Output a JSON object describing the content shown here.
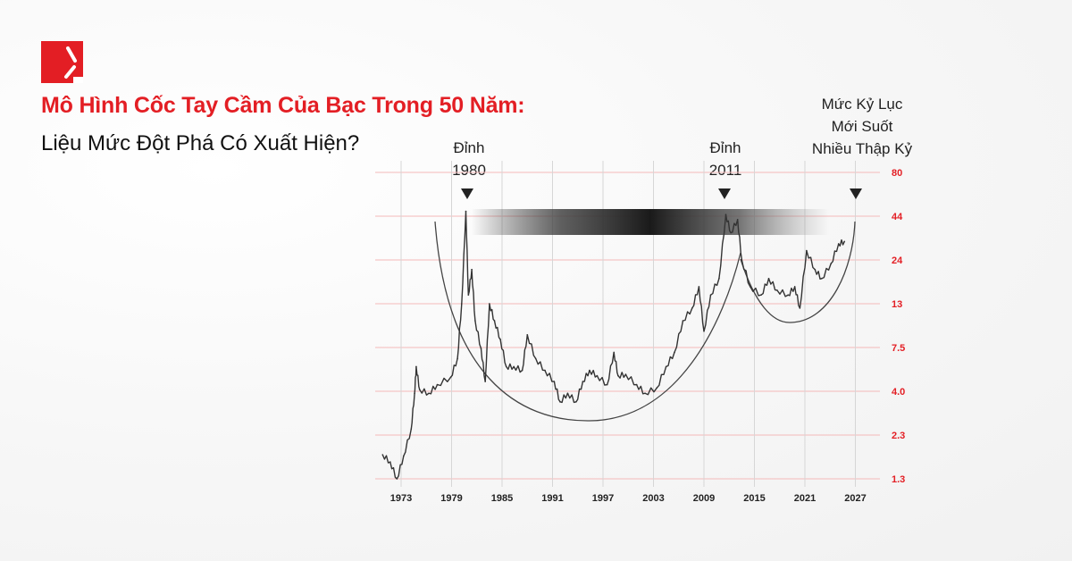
{
  "header": {
    "title": "Mô Hình Cốc Tay Cầm Của Bạc Trong 50 Năm:",
    "subtitle": "Liệu Mức Đột Phá Có Xuất Hiện?",
    "logo_icon": "red-square-logo-icon",
    "accent_color": "#e31e24"
  },
  "annotations": {
    "peak_1980": [
      "Đỉnh",
      "1980"
    ],
    "peak_2011": [
      "Đỉnh",
      "2011"
    ],
    "new_record": [
      "Mức Kỷ Lục",
      "Mới Suốt",
      "Nhiều Thập Kỷ"
    ]
  },
  "chart_data": {
    "type": "line",
    "title": "",
    "xlabel": "",
    "ylabel": "",
    "y_scale": "log",
    "y_ticks": [
      "1.3",
      "2.3",
      "4.0",
      "7.5",
      "13",
      "24",
      "44",
      "80"
    ],
    "x_ticks": [
      "1973",
      "1979",
      "1985",
      "1991",
      "1997",
      "2003",
      "2009",
      "2015",
      "2021",
      "2027"
    ],
    "xlim": [
      1970.5,
      2028
    ],
    "ylim": [
      1.3,
      80
    ],
    "grid": true,
    "line_color": "#333333",
    "grid_color_horizontal": "#f4b9b9",
    "series": [
      {
        "x": [
          1970.8,
          1971.7,
          1972.5,
          1973.3,
          1974.2,
          1974.6,
          1974.8,
          1975.2,
          1976.3,
          1977.3,
          1978.9,
          1979.7,
          1980.2,
          1980.7,
          1981.0,
          1981.4,
          1981.8,
          1982.5,
          1983.0,
          1983.5,
          1984.1,
          1984.8,
          1985.5,
          1986.4,
          1987.4,
          1988.0,
          1989.0,
          1990.1,
          1991.2,
          1991.9,
          1992.8,
          1993.8,
          1994.6,
          1995.4,
          1996.3,
          1997.5,
          1998.3,
          1998.8,
          1999.7,
          2001.0,
          2002.0,
          2003.4,
          2004.5,
          2005.5,
          2006.5,
          2007.6,
          2008.4,
          2009.0,
          2009.8,
          2010.8,
          2011.6,
          2012.2,
          2013.0,
          2013.5,
          2014.5,
          2015.8,
          2016.7,
          2017.7,
          2019.0,
          2019.8,
          2020.4,
          2021.2,
          2022.2,
          2023.0,
          2024.1,
          2025.0,
          2025.7
        ],
        "y": [
          1.78,
          1.62,
          1.3,
          1.75,
          2.48,
          3.9,
          5.7,
          4.1,
          3.9,
          4.4,
          4.9,
          6.4,
          13,
          47,
          14.7,
          21,
          10.5,
          7.4,
          4.6,
          13,
          10.5,
          8.3,
          5.7,
          5.7,
          5.4,
          8.8,
          6.4,
          5.4,
          4.6,
          3.5,
          3.9,
          3.5,
          4.6,
          5.4,
          5.0,
          4.4,
          7.0,
          5.0,
          5.1,
          4.4,
          3.9,
          4.2,
          5.7,
          7.0,
          10.5,
          12.3,
          16.5,
          9.2,
          14.7,
          18.5,
          45,
          35,
          42,
          24,
          16.5,
          14.7,
          18.5,
          15.7,
          14.7,
          16.5,
          12.3,
          27.3,
          21,
          18.5,
          22.8,
          30,
          31
        ]
      }
    ],
    "overlays": {
      "cup": "large arc 1977-2013",
      "handle": "small arc 2013-2026",
      "resistance_band": "dark gradient band near 44",
      "markers": "down triangles at 1980, 2011, 2026"
    }
  }
}
